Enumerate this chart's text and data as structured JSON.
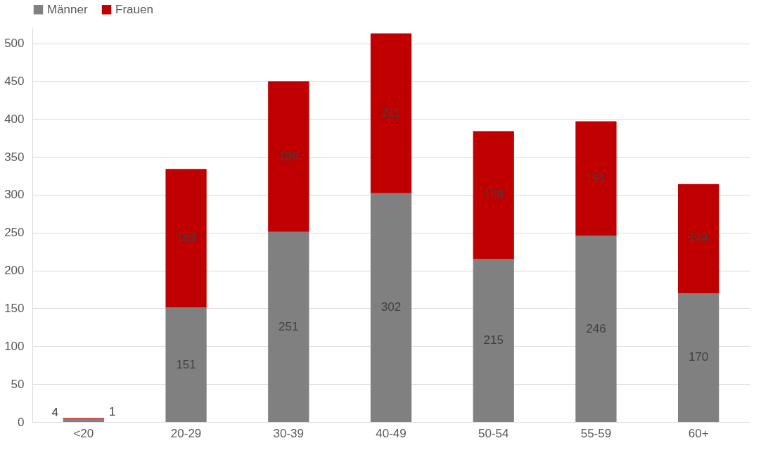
{
  "chart_data": {
    "type": "bar",
    "stacked": true,
    "categories": [
      "<20",
      "20-29",
      "30-39",
      "40-49",
      "50-54",
      "55-59",
      "60+"
    ],
    "series": [
      {
        "name": "Männer",
        "color": "#808080",
        "values": [
          4,
          151,
          251,
          302,
          215,
          246,
          170
        ]
      },
      {
        "name": "Frauen",
        "color": "#c00000",
        "values": [
          1,
          183,
          199,
          211,
          169,
          151,
          144
        ]
      }
    ],
    "ylim": [
      0,
      520
    ],
    "yticks": [
      0,
      50,
      100,
      150,
      200,
      250,
      300,
      350,
      400,
      450,
      500
    ],
    "grid": "y",
    "legend": "top",
    "data_labels": true
  }
}
